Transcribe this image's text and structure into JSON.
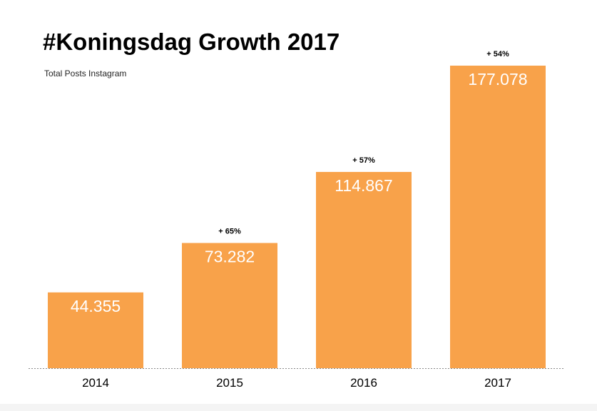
{
  "chart_data": {
    "type": "bar",
    "title": "#Koningsdag Growth 2017",
    "subtitle": "Total Posts Instagram",
    "categories": [
      "2014",
      "2015",
      "2016",
      "2017"
    ],
    "values": [
      44355,
      73282,
      114867,
      177078
    ],
    "value_labels": [
      "44.355",
      "73.282",
      "114.867",
      "177.078"
    ],
    "growth_labels": [
      "",
      "+ 65%",
      "+ 57%",
      "+ 54%"
    ],
    "xlabel": "",
    "ylabel": "",
    "ylim": [
      0,
      177078
    ],
    "grid": false,
    "bar_color": "#f8a24a",
    "value_label_color": "#ffffff",
    "baseline_color": "#888888"
  }
}
